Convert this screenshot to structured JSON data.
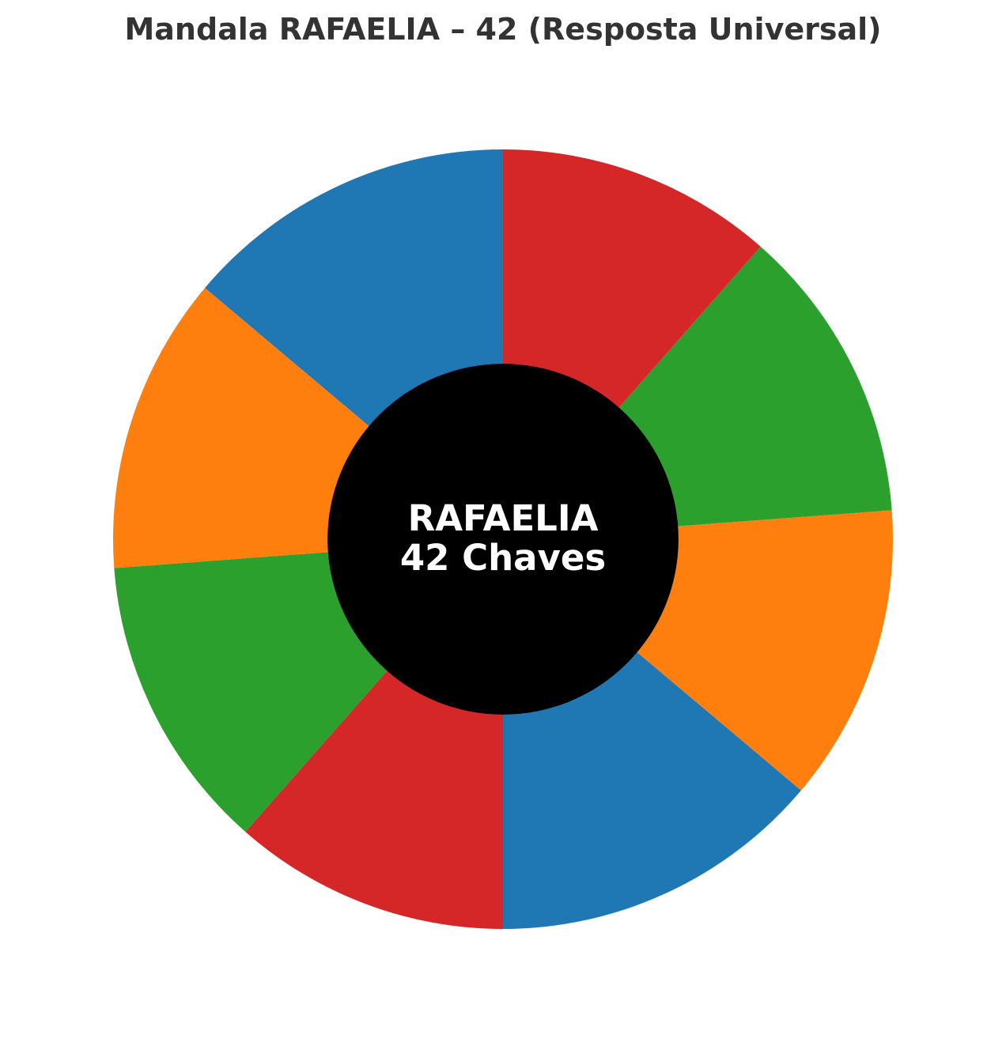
{
  "chart_data": {
    "type": "pie",
    "title": "Mandala RAFAELIA – 42 (Resposta Universal)",
    "center_text": [
      "RAFAELIA",
      "42 Chaves"
    ],
    "center_color": "#000000",
    "slice_colors": [
      "#1f77b4",
      "#ff7f0e",
      "#2ca02c",
      "#d62728"
    ],
    "values": [
      8.2,
      7.3,
      7.3,
      6.8,
      8.2,
      7.3,
      7.3,
      6.8
    ],
    "start_angle_deg": 90,
    "direction": "counterclockwise",
    "inner_radius_ratio": 0.45
  }
}
